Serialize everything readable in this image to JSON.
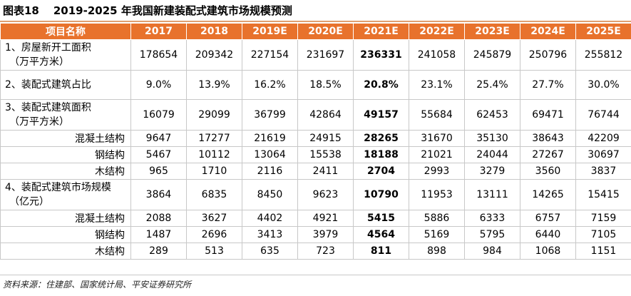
{
  "title": {
    "figure_no": "图表18",
    "text": "2019-2025 年我国新建装配式建筑市场规模预测"
  },
  "table": {
    "headers": [
      "项目名称",
      "2017",
      "2018",
      "2019E",
      "2020E",
      "2021E",
      "2022E",
      "2023E",
      "2024E",
      "2025E"
    ],
    "rows": [
      {
        "label": "1、房屋新开工面积",
        "label2": "（万平方米）",
        "values": [
          "178654",
          "209342",
          "227154",
          "231697",
          "236331",
          "241058",
          "245879",
          "250796",
          "255812"
        ]
      },
      {
        "label": "2、装配式建筑占比",
        "values": [
          "9.0%",
          "13.9%",
          "16.2%",
          "18.5%",
          "20.8%",
          "23.1%",
          "25.4%",
          "27.7%",
          "30.0%"
        ]
      },
      {
        "label": "3、装配式建筑面积",
        "label2": "（万平方米）",
        "values": [
          "16079",
          "29099",
          "36799",
          "42864",
          "49157",
          "55684",
          "62453",
          "69471",
          "76744"
        ]
      },
      {
        "label": "混凝土结构",
        "values": [
          "9647",
          "17277",
          "21619",
          "24915",
          "28265",
          "31670",
          "35130",
          "38643",
          "42209"
        ]
      },
      {
        "label": "钢结构",
        "values": [
          "5467",
          "10112",
          "13064",
          "15538",
          "18188",
          "21021",
          "24044",
          "27267",
          "30697"
        ]
      },
      {
        "label": "木结构",
        "values": [
          "965",
          "1710",
          "2116",
          "2411",
          "2704",
          "2993",
          "3279",
          "3560",
          "3837"
        ]
      },
      {
        "label": "4、装配式建筑市场规模",
        "label2": "（亿元）",
        "values": [
          "3864",
          "6835",
          "8450",
          "9623",
          "10790",
          "11953",
          "13111",
          "14265",
          "15415"
        ]
      },
      {
        "label": "混凝土结构",
        "values": [
          "2088",
          "3627",
          "4402",
          "4921",
          "5415",
          "5886",
          "6333",
          "6757",
          "7159"
        ]
      },
      {
        "label": "钢结构",
        "values": [
          "1487",
          "2696",
          "3413",
          "3979",
          "4564",
          "5169",
          "5795",
          "6440",
          "7105"
        ]
      },
      {
        "label": "木结构",
        "values": [
          "289",
          "513",
          "635",
          "723",
          "811",
          "898",
          "984",
          "1068",
          "1151"
        ]
      }
    ]
  },
  "source": "资料来源：住建部、国家统计局、平安证券研究所",
  "colors": {
    "header_bg": "#e8722c",
    "header_text": "#ffffff",
    "rule": "#e0a070"
  }
}
